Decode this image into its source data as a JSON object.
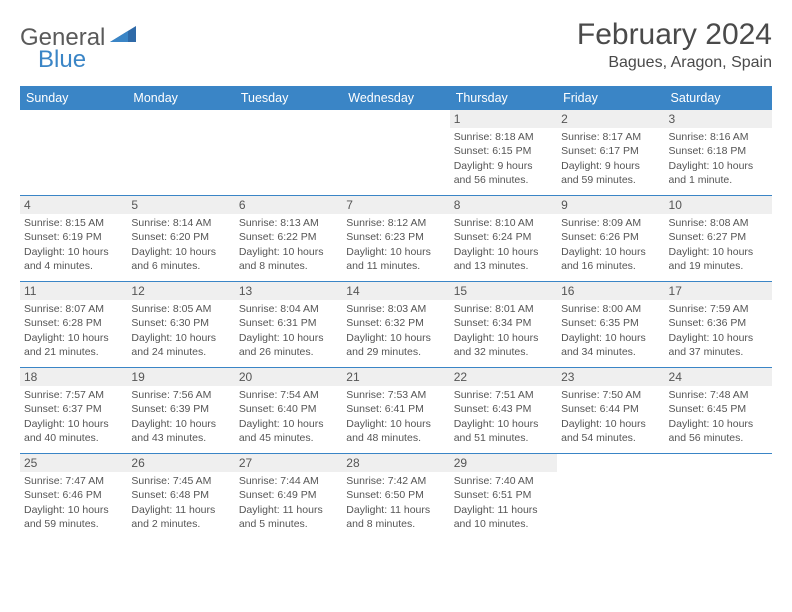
{
  "logo": {
    "word1": "General",
    "word2": "Blue"
  },
  "title": "February 2024",
  "location": "Bagues, Aragon, Spain",
  "dow": [
    "Sunday",
    "Monday",
    "Tuesday",
    "Wednesday",
    "Thursday",
    "Friday",
    "Saturday"
  ],
  "colors": {
    "accent": "#3a85c6",
    "text": "#4a4a4a",
    "bg": "#ffffff",
    "dayHeader": "#efefef"
  },
  "leadingBlanks": 4,
  "days": [
    {
      "n": "1",
      "sr": "8:18 AM",
      "ss": "6:15 PM",
      "dl": "9 hours and 56 minutes."
    },
    {
      "n": "2",
      "sr": "8:17 AM",
      "ss": "6:17 PM",
      "dl": "9 hours and 59 minutes."
    },
    {
      "n": "3",
      "sr": "8:16 AM",
      "ss": "6:18 PM",
      "dl": "10 hours and 1 minute."
    },
    {
      "n": "4",
      "sr": "8:15 AM",
      "ss": "6:19 PM",
      "dl": "10 hours and 4 minutes."
    },
    {
      "n": "5",
      "sr": "8:14 AM",
      "ss": "6:20 PM",
      "dl": "10 hours and 6 minutes."
    },
    {
      "n": "6",
      "sr": "8:13 AM",
      "ss": "6:22 PM",
      "dl": "10 hours and 8 minutes."
    },
    {
      "n": "7",
      "sr": "8:12 AM",
      "ss": "6:23 PM",
      "dl": "10 hours and 11 minutes."
    },
    {
      "n": "8",
      "sr": "8:10 AM",
      "ss": "6:24 PM",
      "dl": "10 hours and 13 minutes."
    },
    {
      "n": "9",
      "sr": "8:09 AM",
      "ss": "6:26 PM",
      "dl": "10 hours and 16 minutes."
    },
    {
      "n": "10",
      "sr": "8:08 AM",
      "ss": "6:27 PM",
      "dl": "10 hours and 19 minutes."
    },
    {
      "n": "11",
      "sr": "8:07 AM",
      "ss": "6:28 PM",
      "dl": "10 hours and 21 minutes."
    },
    {
      "n": "12",
      "sr": "8:05 AM",
      "ss": "6:30 PM",
      "dl": "10 hours and 24 minutes."
    },
    {
      "n": "13",
      "sr": "8:04 AM",
      "ss": "6:31 PM",
      "dl": "10 hours and 26 minutes."
    },
    {
      "n": "14",
      "sr": "8:03 AM",
      "ss": "6:32 PM",
      "dl": "10 hours and 29 minutes."
    },
    {
      "n": "15",
      "sr": "8:01 AM",
      "ss": "6:34 PM",
      "dl": "10 hours and 32 minutes."
    },
    {
      "n": "16",
      "sr": "8:00 AM",
      "ss": "6:35 PM",
      "dl": "10 hours and 34 minutes."
    },
    {
      "n": "17",
      "sr": "7:59 AM",
      "ss": "6:36 PM",
      "dl": "10 hours and 37 minutes."
    },
    {
      "n": "18",
      "sr": "7:57 AM",
      "ss": "6:37 PM",
      "dl": "10 hours and 40 minutes."
    },
    {
      "n": "19",
      "sr": "7:56 AM",
      "ss": "6:39 PM",
      "dl": "10 hours and 43 minutes."
    },
    {
      "n": "20",
      "sr": "7:54 AM",
      "ss": "6:40 PM",
      "dl": "10 hours and 45 minutes."
    },
    {
      "n": "21",
      "sr": "7:53 AM",
      "ss": "6:41 PM",
      "dl": "10 hours and 48 minutes."
    },
    {
      "n": "22",
      "sr": "7:51 AM",
      "ss": "6:43 PM",
      "dl": "10 hours and 51 minutes."
    },
    {
      "n": "23",
      "sr": "7:50 AM",
      "ss": "6:44 PM",
      "dl": "10 hours and 54 minutes."
    },
    {
      "n": "24",
      "sr": "7:48 AM",
      "ss": "6:45 PM",
      "dl": "10 hours and 56 minutes."
    },
    {
      "n": "25",
      "sr": "7:47 AM",
      "ss": "6:46 PM",
      "dl": "10 hours and 59 minutes."
    },
    {
      "n": "26",
      "sr": "7:45 AM",
      "ss": "6:48 PM",
      "dl": "11 hours and 2 minutes."
    },
    {
      "n": "27",
      "sr": "7:44 AM",
      "ss": "6:49 PM",
      "dl": "11 hours and 5 minutes."
    },
    {
      "n": "28",
      "sr": "7:42 AM",
      "ss": "6:50 PM",
      "dl": "11 hours and 8 minutes."
    },
    {
      "n": "29",
      "sr": "7:40 AM",
      "ss": "6:51 PM",
      "dl": "11 hours and 10 minutes."
    }
  ],
  "labels": {
    "sunrise": "Sunrise:",
    "sunset": "Sunset:",
    "daylight": "Daylight:"
  }
}
